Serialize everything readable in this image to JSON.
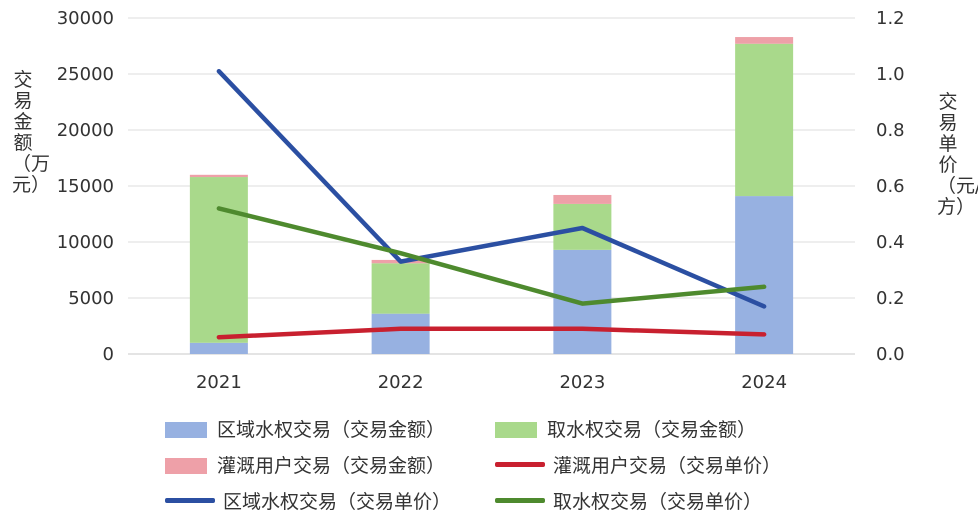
{
  "chart_data": {
    "type": "bar",
    "categories": [
      "2021",
      "2022",
      "2023",
      "2024"
    ],
    "y_left": {
      "label": "交易金额（万元）",
      "ylim": [
        0,
        30000
      ],
      "ticks": [
        "0",
        "5000",
        "10000",
        "15000",
        "20000",
        "25000",
        "30000"
      ]
    },
    "y_right": {
      "label": "交易单价（元/方）",
      "ylim": [
        0,
        1.2
      ],
      "ticks": [
        "0.0",
        "0.2",
        "0.4",
        "0.6",
        "0.8",
        "1.0",
        "1.2"
      ]
    },
    "grid": true,
    "legend_position": "bottom",
    "bar_series": [
      {
        "name": "区域水权交易（交易金额）",
        "values": [
          1000,
          3600,
          9300,
          14100
        ],
        "color": "#97b1e1"
      },
      {
        "name": "取水权交易（交易金额）",
        "values": [
          14800,
          4500,
          4100,
          13600
        ],
        "color": "#a9d98b"
      },
      {
        "name": "灌溉用户交易（交易金额）",
        "values": [
          200,
          300,
          800,
          600
        ],
        "color": "#eea0a8"
      }
    ],
    "line_series": [
      {
        "name": "灌溉用户交易（交易单价）",
        "values": [
          0.06,
          0.09,
          0.09,
          0.07
        ],
        "color": "#c8202f"
      },
      {
        "name": "区域水权交易（交易单价）",
        "values": [
          1.01,
          0.33,
          0.45,
          0.17
        ],
        "color": "#2b4fa2"
      },
      {
        "name": "取水权交易（交易单价）",
        "values": [
          0.52,
          0.36,
          0.18,
          0.24
        ],
        "color": "#4e8a2e"
      }
    ]
  }
}
